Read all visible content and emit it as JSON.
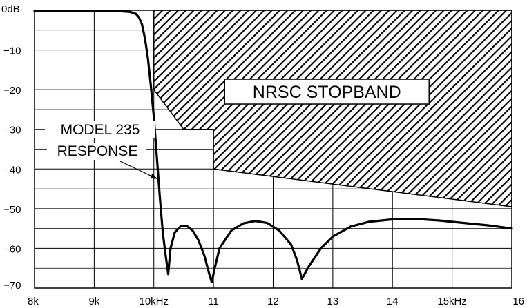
{
  "chart_data": {
    "type": "line",
    "title": "",
    "xlabel": "",
    "ylabel": "",
    "x_scale": "linear",
    "xlim": [
      8,
      16
    ],
    "ylim": [
      -70,
      0
    ],
    "grid": "on",
    "x_ticks": [
      {
        "value": 8,
        "label": "8k"
      },
      {
        "value": 9,
        "label": "9k"
      },
      {
        "value": 10,
        "label": "10kHz"
      },
      {
        "value": 11,
        "label": "11"
      },
      {
        "value": 12,
        "label": "12"
      },
      {
        "value": 13,
        "label": "13"
      },
      {
        "value": 14,
        "label": "14"
      },
      {
        "value": 15,
        "label": "15kHz"
      },
      {
        "value": 16,
        "label": "16"
      }
    ],
    "y_ticks": [
      {
        "value": 0,
        "label": "0dB"
      },
      {
        "value": -10,
        "label": "−10"
      },
      {
        "value": -20,
        "label": "−20"
      },
      {
        "value": -30,
        "label": "−30"
      },
      {
        "value": -40,
        "label": "−40"
      },
      {
        "value": -50,
        "label": "−50"
      },
      {
        "value": -60,
        "label": "−60"
      },
      {
        "value": -70,
        "label": "−70"
      }
    ],
    "stopband": {
      "label": "NRSC STOPBAND",
      "boundary": [
        [
          10.0,
          0
        ],
        [
          16.0,
          0
        ],
        [
          16.0,
          -49.5
        ],
        [
          11.0,
          -40
        ],
        [
          11.0,
          -30
        ],
        [
          10.5,
          -30
        ],
        [
          10.0,
          -20
        ]
      ]
    },
    "series": [
      {
        "label": "MODEL 235 RESPONSE",
        "points": [
          [
            8.0,
            -0.2
          ],
          [
            9.0,
            -0.2
          ],
          [
            9.4,
            -0.2
          ],
          [
            9.6,
            -0.4
          ],
          [
            9.7,
            -0.9
          ],
          [
            9.75,
            -1.8
          ],
          [
            9.8,
            -3.5
          ],
          [
            9.85,
            -7
          ],
          [
            9.9,
            -12
          ],
          [
            9.95,
            -19
          ],
          [
            10.0,
            -27
          ],
          [
            10.05,
            -37
          ],
          [
            10.1,
            -47
          ],
          [
            10.15,
            -56
          ],
          [
            10.2,
            -62
          ],
          [
            10.24,
            -66.5
          ],
          [
            10.28,
            -60
          ],
          [
            10.35,
            -56
          ],
          [
            10.45,
            -54.4
          ],
          [
            10.55,
            -54.3
          ],
          [
            10.65,
            -55.5
          ],
          [
            10.75,
            -58
          ],
          [
            10.85,
            -62
          ],
          [
            10.92,
            -66
          ],
          [
            10.97,
            -68.5
          ],
          [
            11.02,
            -65
          ],
          [
            11.1,
            -60
          ],
          [
            11.3,
            -55.5
          ],
          [
            11.5,
            -53.7
          ],
          [
            11.7,
            -53.1
          ],
          [
            11.9,
            -53.6
          ],
          [
            12.1,
            -55.5
          ],
          [
            12.3,
            -59
          ],
          [
            12.4,
            -63
          ],
          [
            12.48,
            -67.7
          ],
          [
            12.6,
            -64.5
          ],
          [
            12.8,
            -60
          ],
          [
            13.0,
            -57
          ],
          [
            13.3,
            -54.5
          ],
          [
            13.6,
            -53.3
          ],
          [
            14.0,
            -52.7
          ],
          [
            14.4,
            -52.6
          ],
          [
            14.8,
            -53
          ],
          [
            15.2,
            -53.6
          ],
          [
            15.6,
            -54.2
          ],
          [
            16.0,
            -55
          ]
        ]
      }
    ]
  }
}
